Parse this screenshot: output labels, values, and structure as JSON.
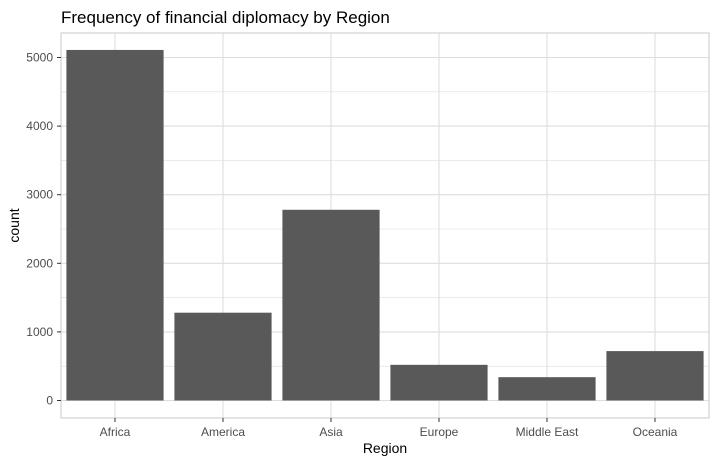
{
  "chart_data": {
    "type": "bar",
    "title": "Frequency of financial diplomacy by Region",
    "xlabel": "Region",
    "ylabel": "count",
    "categories": [
      "Africa",
      "America",
      "Asia",
      "Europe",
      "Middle East",
      "Oceania"
    ],
    "values": [
      5110,
      1280,
      2780,
      520,
      340,
      720
    ],
    "ylim": [
      0,
      5350
    ],
    "yticks": [
      0,
      1000,
      2000,
      3000,
      4000,
      5000
    ],
    "grid": true,
    "bar_color": "#595959",
    "grid_color": "#dedede",
    "panel_border_color": "#c8c8c8"
  }
}
